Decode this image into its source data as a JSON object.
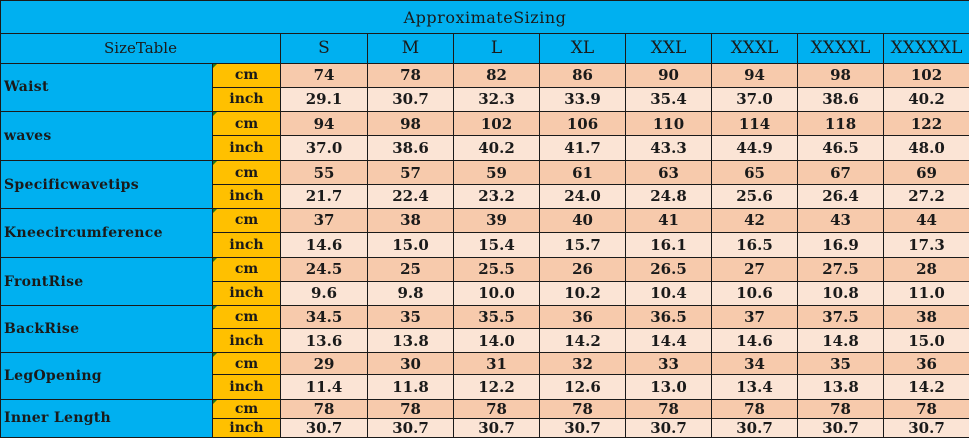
{
  "title": "ApproximateSizing",
  "header": {
    "label": "SizeTable",
    "sizes": [
      "S",
      "M",
      "L",
      "XL",
      "XXL",
      "XXXL",
      "XXXXL",
      "XXXXXL"
    ]
  },
  "units": {
    "cm": "cm",
    "inch": "inch"
  },
  "rows": [
    {
      "label": "Waist",
      "cm": [
        "74",
        "78",
        "82",
        "86",
        "90",
        "94",
        "98",
        "102"
      ],
      "inch": [
        "29.1",
        "30.7",
        "32.3",
        "33.9",
        "35.4",
        "37.0",
        "38.6",
        "40.2"
      ]
    },
    {
      "label": "waves",
      "cm": [
        "94",
        "98",
        "102",
        "106",
        "110",
        "114",
        "118",
        "122"
      ],
      "inch": [
        "37.0",
        "38.6",
        "40.2",
        "41.7",
        "43.3",
        "44.9",
        "46.5",
        "48.0"
      ]
    },
    {
      "label": "Specificwavetips",
      "cm": [
        "55",
        "57",
        "59",
        "61",
        "63",
        "65",
        "67",
        "69"
      ],
      "inch": [
        "21.7",
        "22.4",
        "23.2",
        "24.0",
        "24.8",
        "25.6",
        "26.4",
        "27.2"
      ]
    },
    {
      "label": "Kneecircumference",
      "cm": [
        "37",
        "38",
        "39",
        "40",
        "41",
        "42",
        "43",
        "44"
      ],
      "inch": [
        "14.6",
        "15.0",
        "15.4",
        "15.7",
        "16.1",
        "16.5",
        "16.9",
        "17.3"
      ]
    },
    {
      "label": "FrontRise",
      "cm": [
        "24.5",
        "25",
        "25.5",
        "26",
        "26.5",
        "27",
        "27.5",
        "28"
      ],
      "inch": [
        "9.6",
        "9.8",
        "10.0",
        "10.2",
        "10.4",
        "10.6",
        "10.8",
        "11.0"
      ]
    },
    {
      "label": "BackRise",
      "cm": [
        "34.5",
        "35",
        "35.5",
        "36",
        "36.5",
        "37",
        "37.5",
        "38"
      ],
      "inch": [
        "13.6",
        "13.8",
        "14.0",
        "14.2",
        "14.4",
        "14.6",
        "14.8",
        "15.0"
      ]
    },
    {
      "label": "LegOpening",
      "cm": [
        "29",
        "30",
        "31",
        "32",
        "33",
        "34",
        "35",
        "36"
      ],
      "inch": [
        "11.4",
        "11.8",
        "12.2",
        "12.6",
        "13.0",
        "13.4",
        "13.8",
        "14.2"
      ]
    },
    {
      "label": "Inner Length",
      "cm": [
        "78",
        "78",
        "78",
        "78",
        "78",
        "78",
        "78",
        "78"
      ],
      "inch": [
        "30.7",
        "30.7",
        "30.7",
        "30.7",
        "30.7",
        "30.7",
        "30.7",
        "30.7"
      ]
    }
  ],
  "colors": {
    "header_blue": "#00b0f0",
    "unit_orange": "#ffc000",
    "cm_peach": "#f7caac",
    "inch_light_peach": "#fbe4d5"
  }
}
